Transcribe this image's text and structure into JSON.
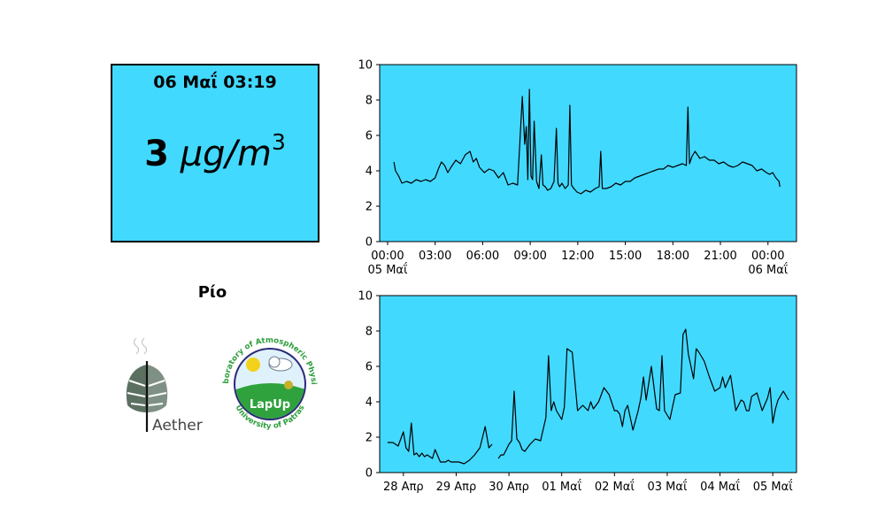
{
  "panel": {
    "timestamp": "06 Μαΐ 03:19",
    "value": "3",
    "unit": "μg/m",
    "unit_exp": "3",
    "background": "#42d9ff"
  },
  "station": {
    "name": "Ρίο"
  },
  "logos": {
    "aether": {
      "text": "Aether"
    },
    "lapup": {
      "center_text": "LapUp",
      "ring_top": "Laboratory of Atmospheric Physics",
      "ring_bottom": "University of Patras"
    }
  },
  "colors": {
    "plot_bg": "#42d9ff",
    "line": "#000000"
  },
  "chart_data": [
    {
      "type": "line",
      "title": "",
      "xlabel": "",
      "ylabel": "",
      "ylim": [
        0,
        10
      ],
      "yticks": [
        0,
        2,
        4,
        6,
        8,
        10
      ],
      "xlim_hours": [
        -0.5,
        25.8
      ],
      "xticks": [
        {
          "h": 0,
          "label": "00:00",
          "sub": "05 Μαΐ"
        },
        {
          "h": 3,
          "label": "03:00",
          "sub": ""
        },
        {
          "h": 6,
          "label": "06:00",
          "sub": ""
        },
        {
          "h": 9,
          "label": "09:00",
          "sub": ""
        },
        {
          "h": 12,
          "label": "12:00",
          "sub": ""
        },
        {
          "h": 15,
          "label": "15:00",
          "sub": ""
        },
        {
          "h": 18,
          "label": "18:00",
          "sub": ""
        },
        {
          "h": 21,
          "label": "21:00",
          "sub": ""
        },
        {
          "h": 24,
          "label": "00:00",
          "sub": "06 Μαΐ"
        }
      ],
      "grid": false,
      "series": [
        {
          "x": [
            0.4,
            0.5,
            0.7,
            0.9,
            1.2,
            1.5,
            1.8,
            2.1,
            2.4,
            2.7,
            3.0,
            3.2,
            3.4,
            3.6,
            3.8,
            4.0,
            4.3,
            4.6,
            4.9,
            5.2,
            5.4,
            5.6,
            5.8,
            6.1,
            6.4,
            6.7,
            7.0,
            7.3,
            7.6,
            7.9,
            8.2,
            8.5,
            8.65,
            8.75,
            8.85,
            8.95,
            9.05,
            9.15,
            9.25,
            9.4,
            9.55,
            9.7,
            9.8,
            9.95,
            10.1,
            10.3,
            10.5,
            10.65,
            10.75,
            10.85,
            11.0,
            11.2,
            11.4,
            11.5,
            11.6,
            11.75,
            11.95,
            12.2,
            12.5,
            12.8,
            13.1,
            13.35,
            13.45,
            13.55,
            13.8,
            14.1,
            14.4,
            14.7,
            15.0,
            15.3,
            15.6,
            15.9,
            16.2,
            16.5,
            16.8,
            17.1,
            17.4,
            17.7,
            18.0,
            18.3,
            18.6,
            18.85,
            18.95,
            19.05,
            19.2,
            19.4,
            19.7,
            20.0,
            20.3,
            20.6,
            20.9,
            21.2,
            21.5,
            21.8,
            22.1,
            22.4,
            22.7,
            23.0,
            23.3,
            23.6,
            23.9,
            24.1,
            24.3,
            24.5,
            24.7,
            24.75
          ],
          "y": [
            4.5,
            4.0,
            3.7,
            3.3,
            3.4,
            3.3,
            3.5,
            3.4,
            3.5,
            3.4,
            3.6,
            4.1,
            4.5,
            4.3,
            3.9,
            4.2,
            4.6,
            4.4,
            4.9,
            5.1,
            4.5,
            4.7,
            4.2,
            3.9,
            4.1,
            4.0,
            3.6,
            3.9,
            3.2,
            3.3,
            3.2,
            8.2,
            5.5,
            6.5,
            3.5,
            8.6,
            3.7,
            3.5,
            6.8,
            3.4,
            3.0,
            4.9,
            3.2,
            3.1,
            2.9,
            3.0,
            3.4,
            6.4,
            3.3,
            3.1,
            3.3,
            3.0,
            3.2,
            7.7,
            3.2,
            3.0,
            2.8,
            2.7,
            2.9,
            2.8,
            3.0,
            3.1,
            5.1,
            3.0,
            3.0,
            3.1,
            3.3,
            3.2,
            3.4,
            3.4,
            3.6,
            3.7,
            3.8,
            3.9,
            4.0,
            4.1,
            4.1,
            4.3,
            4.2,
            4.3,
            4.4,
            4.3,
            7.6,
            4.4,
            4.8,
            5.1,
            4.7,
            4.8,
            4.6,
            4.6,
            4.4,
            4.5,
            4.3,
            4.2,
            4.3,
            4.5,
            4.4,
            4.3,
            4.0,
            4.1,
            3.9,
            3.8,
            3.9,
            3.6,
            3.4,
            3.1
          ]
        }
      ]
    },
    {
      "type": "line",
      "title": "",
      "xlabel": "",
      "ylabel": "",
      "ylim": [
        0,
        10
      ],
      "yticks": [
        0,
        2,
        4,
        6,
        8,
        10
      ],
      "xlim_days": [
        -0.45,
        7.45
      ],
      "xticks": [
        {
          "d": 0,
          "label": "28 Απρ"
        },
        {
          "d": 1,
          "label": "29 Απρ"
        },
        {
          "d": 2,
          "label": "30 Απρ"
        },
        {
          "d": 3,
          "label": "01 Μαΐ"
        },
        {
          "d": 4,
          "label": "02 Μαΐ"
        },
        {
          "d": 5,
          "label": "03 Μαΐ"
        },
        {
          "d": 6,
          "label": "04 Μαΐ"
        },
        {
          "d": 7,
          "label": "05 Μαΐ"
        }
      ],
      "grid": false,
      "series": [
        {
          "segments": [
            {
              "x": [
                -0.3,
                -0.2,
                -0.1,
                0.0,
                0.05,
                0.1,
                0.15,
                0.2,
                0.25,
                0.3,
                0.35,
                0.4,
                0.45,
                0.55,
                0.6,
                0.7,
                0.75,
                0.8,
                0.85,
                0.9,
                0.95,
                1.05,
                1.15,
                1.25,
                1.35,
                1.45,
                1.55,
                1.62,
                1.68
              ],
              "y": [
                1.7,
                1.7,
                1.5,
                2.3,
                1.4,
                1.2,
                2.8,
                1.0,
                1.1,
                0.9,
                1.1,
                0.9,
                1.0,
                0.8,
                1.3,
                0.6,
                0.6,
                0.6,
                0.7,
                0.6,
                0.6,
                0.6,
                0.5,
                0.7,
                1.0,
                1.4,
                2.6,
                1.4,
                1.6
              ]
            },
            {
              "x": [
                1.8,
                1.85,
                1.9,
                2.0,
                2.05,
                2.1,
                2.15,
                2.2,
                2.25,
                2.3,
                2.4,
                2.5,
                2.6,
                2.7,
                2.75,
                2.8,
                2.85,
                2.9,
                3.0,
                3.05,
                3.1,
                3.2,
                3.3,
                3.4,
                3.5,
                3.55,
                3.6,
                3.7,
                3.8,
                3.9,
                4.0,
                4.05,
                4.1,
                4.15,
                4.2,
                4.25,
                4.35,
                4.45,
                4.5,
                4.55,
                4.6,
                4.7,
                4.8,
                4.85,
                4.9,
                4.95,
                5.05,
                5.15,
                5.25,
                5.3,
                5.35,
                5.4,
                5.5,
                5.55,
                5.6,
                5.7,
                5.8,
                5.9,
                6.0,
                6.05,
                6.1,
                6.2,
                6.3,
                6.4,
                6.45,
                6.5,
                6.55,
                6.6,
                6.7,
                6.8,
                6.9,
                6.95,
                7.0,
                7.05,
                7.1,
                7.2,
                7.3
              ],
              "y": [
                0.8,
                1.0,
                1.0,
                1.6,
                1.8,
                4.6,
                1.9,
                1.7,
                1.3,
                1.2,
                1.6,
                1.9,
                1.8,
                3.1,
                6.6,
                3.5,
                4.0,
                3.5,
                3.0,
                3.7,
                7.0,
                6.8,
                3.5,
                3.8,
                3.5,
                4.0,
                3.6,
                4.0,
                4.8,
                4.4,
                3.5,
                3.5,
                3.3,
                2.6,
                3.5,
                3.8,
                2.4,
                3.5,
                4.2,
                5.4,
                4.1,
                6.0,
                3.6,
                3.5,
                6.6,
                3.5,
                3.0,
                4.4,
                4.5,
                7.8,
                8.1,
                6.7,
                5.3,
                7.0,
                6.8,
                6.3,
                5.4,
                4.6,
                4.8,
                5.4,
                4.8,
                5.5,
                3.5,
                4.1,
                4.0,
                3.5,
                3.5,
                4.3,
                4.5,
                3.5,
                4.2,
                4.8,
                2.8,
                3.6,
                4.1,
                4.6,
                4.1
              ]
            }
          ]
        }
      ]
    }
  ]
}
